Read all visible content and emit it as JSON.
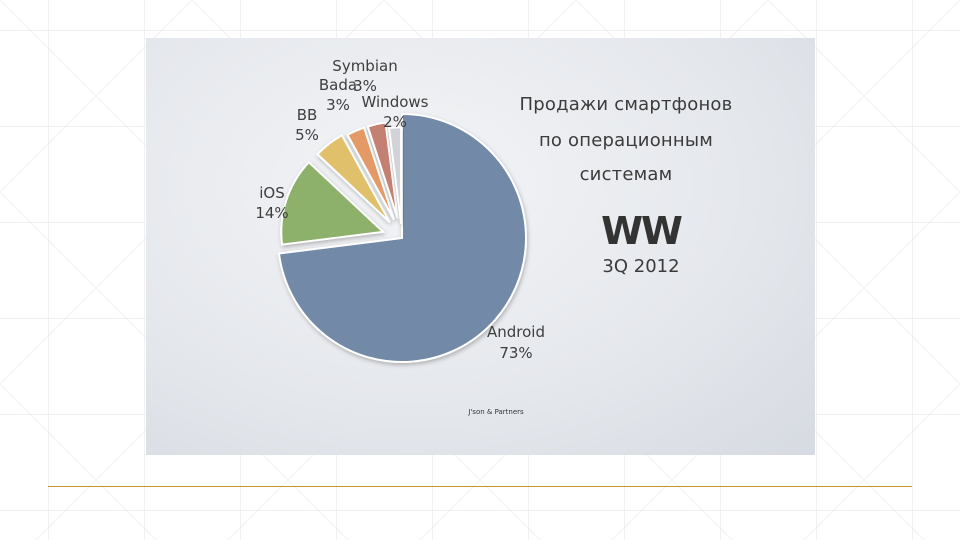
{
  "title": {
    "line1": "Продажи смартфонов",
    "line2": "по операционным",
    "line3": "системам"
  },
  "region": "WW",
  "period": "3Q 2012",
  "source": "J'son & Partners",
  "colors": {
    "android": "#7389a8",
    "ios": "#8db06a",
    "bb": "#e0c06a",
    "bada": "#e39a66",
    "symbian": "#c4806f",
    "windows": "#d2d3d8",
    "rule": "#c8913a"
  },
  "chart_data": {
    "type": "pie",
    "title": "Продажи смартфонов по операционным системам",
    "subtitle": "WW 3Q 2012",
    "unit": "%",
    "slices": [
      {
        "name": "Android",
        "value": 73,
        "label": "73%"
      },
      {
        "name": "iOS",
        "value": 14,
        "label": "14%"
      },
      {
        "name": "BB",
        "value": 5,
        "label": "5%"
      },
      {
        "name": "Bada",
        "value": 3,
        "label": "3%"
      },
      {
        "name": "Symbian",
        "value": 3,
        "label": "3%"
      },
      {
        "name": "Windows",
        "value": 2,
        "label": "2%"
      }
    ]
  }
}
